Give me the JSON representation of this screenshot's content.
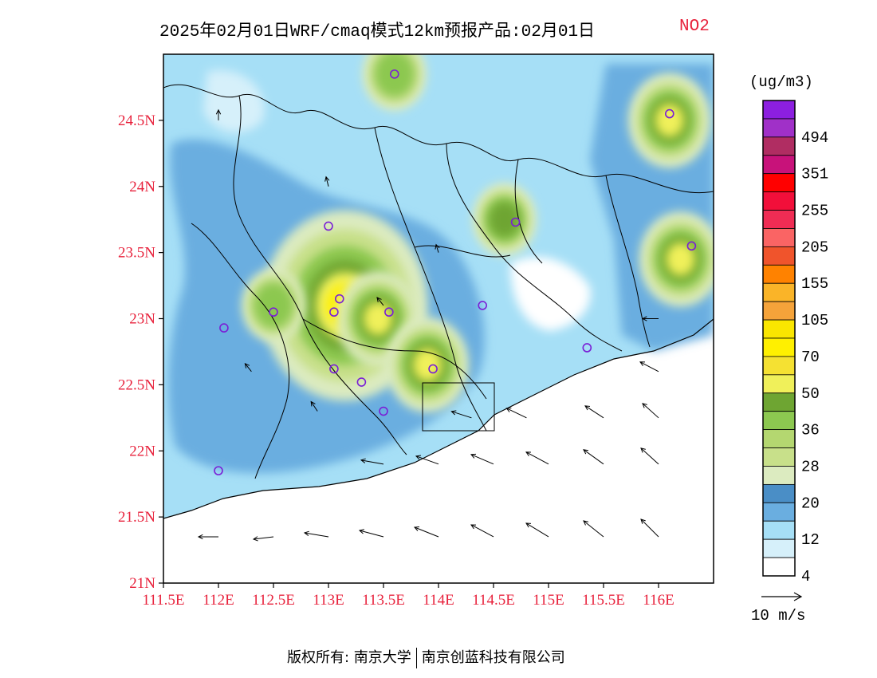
{
  "title": {
    "main": "2025年02月01日WRF/cmaq模式12km预报产品:02月01日",
    "variable": "NO2"
  },
  "map": {
    "lon_range": [
      111.5,
      116.5
    ],
    "lat_range": [
      21,
      25
    ],
    "lat_ticks": [
      "21N",
      "21.5N",
      "22N",
      "22.5N",
      "23N",
      "23.5N",
      "24N",
      "24.5N"
    ],
    "lon_ticks": [
      "111.5E",
      "112E",
      "112.5E",
      "113E",
      "113.5E",
      "114E",
      "114.5E",
      "115E",
      "115.5E",
      "116E"
    ],
    "land_color": "#a6dff6",
    "sea_color": "#ffffff",
    "hotspots": [
      {
        "lon": 113.15,
        "lat": 23.1,
        "level": 70
      },
      {
        "lon": 113.45,
        "lat": 23.0,
        "level": 50
      },
      {
        "lon": 113.9,
        "lat": 22.65,
        "level": 50
      },
      {
        "lon": 116.1,
        "lat": 24.5,
        "level": 50
      },
      {
        "lon": 116.2,
        "lat": 23.45,
        "level": 50
      },
      {
        "lon": 114.6,
        "lat": 23.75,
        "level": 36
      },
      {
        "lon": 113.6,
        "lat": 24.85,
        "level": 28
      },
      {
        "lon": 112.5,
        "lat": 23.1,
        "level": 28
      }
    ],
    "stations": [
      {
        "lon": 113.6,
        "lat": 24.85
      },
      {
        "lon": 116.1,
        "lat": 24.55
      },
      {
        "lon": 114.7,
        "lat": 23.73
      },
      {
        "lon": 116.3,
        "lat": 23.55
      },
      {
        "lon": 113.0,
        "lat": 23.7
      },
      {
        "lon": 112.5,
        "lat": 23.05
      },
      {
        "lon": 113.1,
        "lat": 23.15
      },
      {
        "lon": 113.05,
        "lat": 23.05
      },
      {
        "lon": 113.55,
        "lat": 23.05
      },
      {
        "lon": 114.4,
        "lat": 23.1
      },
      {
        "lon": 112.05,
        "lat": 22.93
      },
      {
        "lon": 115.35,
        "lat": 22.78
      },
      {
        "lon": 113.05,
        "lat": 22.62
      },
      {
        "lon": 113.3,
        "lat": 22.52
      },
      {
        "lon": 113.95,
        "lat": 22.62
      },
      {
        "lon": 113.5,
        "lat": 22.3
      },
      {
        "lon": 112.0,
        "lat": 21.85
      }
    ],
    "wind_vectors": [
      {
        "lon": 112.0,
        "lat": 21.35,
        "u": -2.5,
        "v": 0.0
      },
      {
        "lon": 112.5,
        "lat": 21.35,
        "u": -2.5,
        "v": -0.3
      },
      {
        "lon": 113.0,
        "lat": 21.35,
        "u": -3.0,
        "v": 0.5
      },
      {
        "lon": 113.5,
        "lat": 21.35,
        "u": -3.0,
        "v": 0.8
      },
      {
        "lon": 114.0,
        "lat": 21.35,
        "u": -3.0,
        "v": 1.2
      },
      {
        "lon": 114.5,
        "lat": 21.35,
        "u": -2.8,
        "v": 1.5
      },
      {
        "lon": 115.0,
        "lat": 21.35,
        "u": -2.8,
        "v": 1.7
      },
      {
        "lon": 115.5,
        "lat": 21.35,
        "u": -2.5,
        "v": 2.0
      },
      {
        "lon": 116.0,
        "lat": 21.35,
        "u": -2.2,
        "v": 2.2
      },
      {
        "lon": 113.5,
        "lat": 21.9,
        "u": -2.8,
        "v": 0.5
      },
      {
        "lon": 114.0,
        "lat": 21.9,
        "u": -2.8,
        "v": 1.0
      },
      {
        "lon": 114.5,
        "lat": 21.9,
        "u": -2.8,
        "v": 1.2
      },
      {
        "lon": 115.0,
        "lat": 21.9,
        "u": -2.8,
        "v": 1.5
      },
      {
        "lon": 115.5,
        "lat": 21.9,
        "u": -2.5,
        "v": 1.8
      },
      {
        "lon": 116.0,
        "lat": 21.9,
        "u": -2.2,
        "v": 2.0
      },
      {
        "lon": 114.3,
        "lat": 22.25,
        "u": -2.5,
        "v": 0.8
      },
      {
        "lon": 114.8,
        "lat": 22.25,
        "u": -2.5,
        "v": 1.2
      },
      {
        "lon": 115.5,
        "lat": 22.25,
        "u": -2.3,
        "v": 1.5
      },
      {
        "lon": 116.0,
        "lat": 22.25,
        "u": -2.0,
        "v": 1.8
      },
      {
        "lon": 116.0,
        "lat": 22.6,
        "u": -2.3,
        "v": 1.2
      },
      {
        "lon": 116.0,
        "lat": 23.0,
        "u": -2.0,
        "v": 0.0
      },
      {
        "lon": 113.5,
        "lat": 23.1,
        "u": -0.8,
        "v": 1.0
      },
      {
        "lon": 114.0,
        "lat": 23.5,
        "u": -0.3,
        "v": 1.0
      },
      {
        "lon": 112.0,
        "lat": 24.5,
        "u": 0.0,
        "v": 1.3
      },
      {
        "lon": 113.0,
        "lat": 24.0,
        "u": -0.3,
        "v": 1.2
      },
      {
        "lon": 112.3,
        "lat": 22.6,
        "u": -0.8,
        "v": 1.0
      },
      {
        "lon": 112.9,
        "lat": 22.3,
        "u": -0.8,
        "v": 1.2
      }
    ]
  },
  "colorbar": {
    "unit": "(ug/m3)",
    "levels": [
      {
        "color": "#8c1fe0",
        "label": ""
      },
      {
        "color": "#a030c8",
        "label": "494"
      },
      {
        "color": "#b02d62",
        "label": ""
      },
      {
        "color": "#c8127a",
        "label": "351"
      },
      {
        "color": "#ff0000",
        "label": ""
      },
      {
        "color": "#f20f3a",
        "label": "255"
      },
      {
        "color": "#f02c54",
        "label": ""
      },
      {
        "color": "#fa6464",
        "label": "205"
      },
      {
        "color": "#f0542c",
        "label": ""
      },
      {
        "color": "#ff8200",
        "label": "155"
      },
      {
        "color": "#fab428",
        "label": ""
      },
      {
        "color": "#f5a33a",
        "label": "105"
      },
      {
        "color": "#fae600",
        "label": ""
      },
      {
        "color": "#fff000",
        "label": "70"
      },
      {
        "color": "#f5e132",
        "label": ""
      },
      {
        "color": "#f0f05a",
        "label": "50"
      },
      {
        "color": "#6ea532",
        "label": ""
      },
      {
        "color": "#8cc850",
        "label": "36"
      },
      {
        "color": "#b4d770",
        "label": ""
      },
      {
        "color": "#c8e08a",
        "label": "28"
      },
      {
        "color": "#dcebc0",
        "label": ""
      },
      {
        "color": "#4a8ec6",
        "label": "20"
      },
      {
        "color": "#6aaee0",
        "label": ""
      },
      {
        "color": "#a6dff6",
        "label": "12"
      },
      {
        "color": "#d6f0fa",
        "label": ""
      },
      {
        "color": "#ffffff",
        "label": "4"
      }
    ]
  },
  "wind_legend": "10 m/s",
  "footer": {
    "left": "版权所有: 南京大学",
    "right": "南京创蓝科技有限公司"
  }
}
